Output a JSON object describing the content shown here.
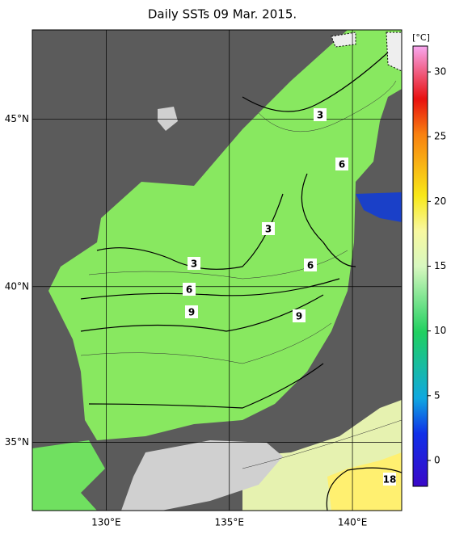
{
  "title": "Daily SSTs 09 Mar. 2015.",
  "map": {
    "lonlim": [
      127,
      142
    ],
    "latlim": [
      32.7,
      47.5
    ],
    "lon_ticks": [
      {
        "value": 130,
        "label": "130°E"
      },
      {
        "value": 135,
        "label": "135°E"
      },
      {
        "value": 140,
        "label": "140°E"
      }
    ],
    "lat_ticks": [
      {
        "value": 35,
        "label": "35°N"
      },
      {
        "value": 40,
        "label": "40°N"
      },
      {
        "value": 45,
        "label": "45°N"
      }
    ],
    "contour_labels": [
      3,
      6,
      3,
      3,
      6,
      6,
      9,
      9,
      18
    ]
  },
  "colorbar": {
    "unit": "[°C]",
    "range": [
      -2,
      32
    ],
    "ticks": [
      0,
      5,
      10,
      15,
      20,
      25,
      30
    ]
  }
}
